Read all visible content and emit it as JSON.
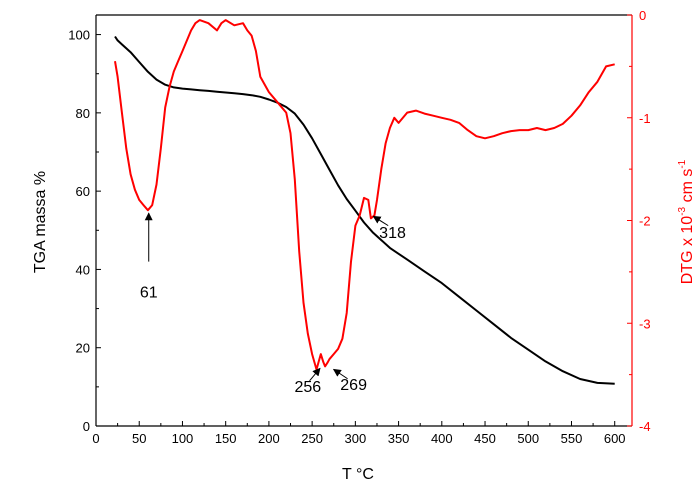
{
  "chart_data": {
    "type": "line",
    "title": "",
    "xlabel": "T °C",
    "ylabel_left": "TGA massa %",
    "ylabel_right_parts": {
      "pre": "DTG x 10",
      "exp": "-3",
      "mid": " cm s",
      "exp2": "-1"
    },
    "xlim": [
      0,
      620
    ],
    "ylim_left": [
      0,
      105
    ],
    "ylim_right": [
      -4,
      0
    ],
    "x_ticks": [
      0,
      50,
      100,
      150,
      200,
      250,
      300,
      350,
      400,
      450,
      500,
      550,
      600
    ],
    "x_tick_labels": [
      "0",
      "50",
      "100",
      "150",
      "200",
      "250",
      "300",
      "350",
      "400",
      "450",
      "500",
      "550",
      "600"
    ],
    "y_left_ticks": [
      0,
      20,
      40,
      60,
      80,
      100
    ],
    "y_left_tick_labels": [
      "0",
      "20",
      "40",
      "60",
      "80",
      "100"
    ],
    "y_right_ticks": [
      0,
      -1,
      -2,
      -3,
      -4
    ],
    "y_right_tick_labels": [
      "0",
      "-1",
      "-2",
      "-3",
      "-4"
    ],
    "grid": false,
    "colors": {
      "tga": "#000000",
      "dtg": "#ff0000",
      "axis_right": "#ff0000",
      "axis": "#000000"
    },
    "series": [
      {
        "axis": "left",
        "color": "#000000",
        "x": [
          22,
          25,
          30,
          40,
          50,
          60,
          70,
          80,
          90,
          100,
          110,
          120,
          130,
          140,
          150,
          160,
          170,
          180,
          190,
          200,
          210,
          220,
          230,
          240,
          250,
          260,
          270,
          280,
          290,
          300,
          310,
          320,
          330,
          340,
          350,
          360,
          380,
          400,
          420,
          440,
          460,
          480,
          500,
          520,
          540,
          560,
          580,
          600
        ],
        "y": [
          99.5,
          98.5,
          97.5,
          95.5,
          93,
          90.5,
          88.5,
          87.2,
          86.5,
          86.2,
          86,
          85.8,
          85.6,
          85.4,
          85.2,
          85,
          84.8,
          84.5,
          84.1,
          83.4,
          82.6,
          81.5,
          79.8,
          77,
          73.5,
          69.5,
          65.5,
          61.5,
          58,
          55,
          52,
          49.5,
          47.5,
          45.5,
          44,
          42.5,
          39.5,
          36.5,
          33,
          29.5,
          26,
          22.5,
          19.5,
          16.5,
          14,
          12,
          11,
          10.8
        ]
      },
      {
        "axis": "right",
        "color": "#ff0000",
        "x": [
          22,
          25,
          30,
          35,
          40,
          45,
          50,
          55,
          60,
          65,
          70,
          75,
          80,
          85,
          90,
          95,
          100,
          110,
          115,
          120,
          130,
          140,
          145,
          150,
          160,
          170,
          175,
          180,
          185,
          190,
          200,
          210,
          220,
          225,
          230,
          235,
          240,
          245,
          250,
          255,
          260,
          263,
          265,
          268,
          270,
          275,
          280,
          285,
          290,
          295,
          300,
          305,
          310,
          315,
          318,
          322,
          325,
          330,
          335,
          340,
          345,
          350,
          360,
          370,
          380,
          390,
          400,
          410,
          420,
          430,
          440,
          450,
          460,
          470,
          480,
          490,
          500,
          510,
          520,
          530,
          540,
          550,
          560,
          570,
          580,
          590,
          600
        ],
        "y": [
          -0.45,
          -0.6,
          -0.95,
          -1.3,
          -1.55,
          -1.7,
          -1.8,
          -1.85,
          -1.9,
          -1.85,
          -1.65,
          -1.3,
          -0.9,
          -0.7,
          -0.55,
          -0.45,
          -0.35,
          -0.15,
          -0.08,
          -0.05,
          -0.08,
          -0.15,
          -0.08,
          -0.05,
          -0.1,
          -0.08,
          -0.15,
          -0.2,
          -0.35,
          -0.6,
          -0.75,
          -0.85,
          -0.95,
          -1.15,
          -1.6,
          -2.3,
          -2.8,
          -3.1,
          -3.3,
          -3.45,
          -3.3,
          -3.38,
          -3.42,
          -3.38,
          -3.35,
          -3.3,
          -3.25,
          -3.15,
          -2.9,
          -2.4,
          -2.05,
          -1.95,
          -1.78,
          -1.8,
          -1.98,
          -1.95,
          -1.8,
          -1.5,
          -1.25,
          -1.1,
          -1.0,
          -1.05,
          -0.95,
          -0.93,
          -0.96,
          -0.98,
          -1.0,
          -1.02,
          -1.05,
          -1.12,
          -1.18,
          -1.2,
          -1.18,
          -1.15,
          -1.13,
          -1.12,
          -1.12,
          -1.1,
          -1.12,
          -1.1,
          -1.06,
          -0.98,
          -0.88,
          -0.75,
          -0.65,
          -0.5,
          -0.48
        ]
      }
    ],
    "annotations": [
      {
        "label": "61",
        "text_x": 61,
        "text_y_right": -2.7,
        "arrow_from_x": 61,
        "arrow_from_y_right": -2.4,
        "arrow_to_x": 61,
        "arrow_to_y_right": -1.93
      },
      {
        "label": "318",
        "text_x": 343,
        "text_y_right": -2.12,
        "arrow_from_x": 338,
        "arrow_from_y_right": -2.05,
        "arrow_to_x": 321,
        "arrow_to_y_right": -1.96
      },
      {
        "label": "256",
        "text_x": 245,
        "text_y_right": -3.62,
        "arrow_from_x": 247,
        "arrow_from_y_right": -3.56,
        "arrow_to_x": 259,
        "arrow_to_y_right": -3.44
      },
      {
        "label": "269",
        "text_x": 298,
        "text_y_right": -3.6,
        "arrow_from_x": 291,
        "arrow_from_y_right": -3.54,
        "arrow_to_x": 275,
        "arrow_to_y_right": -3.45
      }
    ]
  }
}
